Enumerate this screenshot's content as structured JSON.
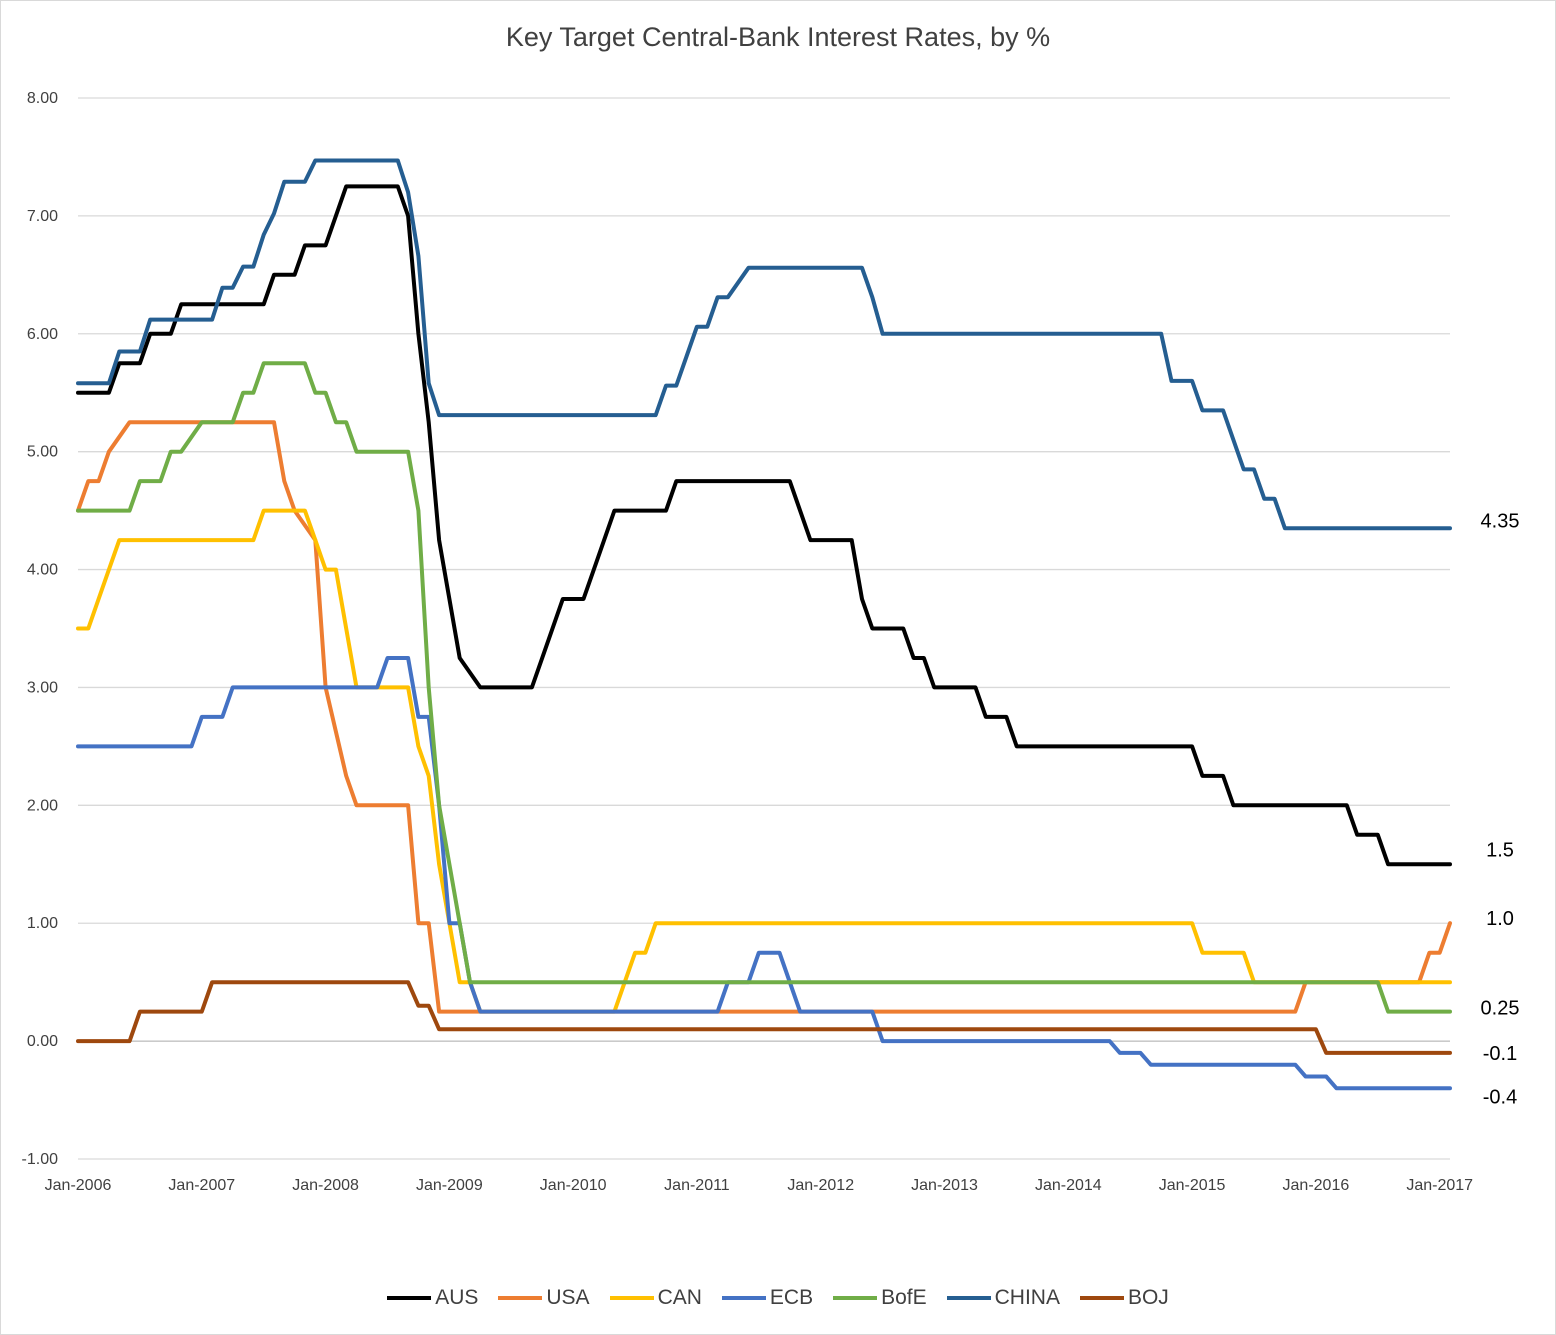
{
  "chart_data": {
    "type": "line",
    "title": "Key Target Central-Bank Interest Rates, by %",
    "xlabel": "",
    "ylabel": "",
    "ylim": [
      -1,
      8
    ],
    "xlim": [
      "2006-01",
      "2017-02"
    ],
    "grid": true,
    "legend_position": "bottom",
    "y_ticks": [
      "8.00",
      "7.00",
      "6.00",
      "5.00",
      "4.00",
      "3.00",
      "2.00",
      "1.00",
      "0.00",
      "-1.00"
    ],
    "x_ticks": [
      "Jan-2006",
      "Jan-2007",
      "Jan-2008",
      "Jan-2009",
      "Jan-2010",
      "Jan-2011",
      "Jan-2012",
      "Jan-2013",
      "Jan-2014",
      "Jan-2015",
      "Jan-2016",
      "Jan-2017"
    ],
    "end_labels": [
      {
        "text": "4.35",
        "value": 4.35
      },
      {
        "text": "1.5",
        "value": 1.5
      },
      {
        "text": "1.0",
        "value": 1.0
      },
      {
        "text": "0.25",
        "value": 0.25
      },
      {
        "text": "-0.1",
        "value": -0.1
      },
      {
        "text": "-0.4",
        "value": -0.4
      }
    ],
    "series": [
      {
        "name": "AUS",
        "color": "#000000",
        "points": [
          [
            "2006-01",
            5.5
          ],
          [
            "2006-04",
            5.5
          ],
          [
            "2006-05",
            5.75
          ],
          [
            "2006-07",
            5.75
          ],
          [
            "2006-08",
            6.0
          ],
          [
            "2006-10",
            6.0
          ],
          [
            "2006-11",
            6.25
          ],
          [
            "2007-07",
            6.25
          ],
          [
            "2007-08",
            6.5
          ],
          [
            "2007-10",
            6.5
          ],
          [
            "2007-11",
            6.75
          ],
          [
            "2008-01",
            6.75
          ],
          [
            "2008-02",
            7.0
          ],
          [
            "2008-03",
            7.25
          ],
          [
            "2008-08",
            7.25
          ],
          [
            "2008-09",
            7.0
          ],
          [
            "2008-10",
            6.0
          ],
          [
            "2008-11",
            5.25
          ],
          [
            "2008-12",
            4.25
          ],
          [
            "2009-02",
            3.25
          ],
          [
            "2009-04",
            3.0
          ],
          [
            "2009-09",
            3.0
          ],
          [
            "2009-10",
            3.25
          ],
          [
            "2009-11",
            3.5
          ],
          [
            "2009-12",
            3.75
          ],
          [
            "2010-02",
            3.75
          ],
          [
            "2010-03",
            4.0
          ],
          [
            "2010-05",
            4.5
          ],
          [
            "2010-10",
            4.5
          ],
          [
            "2010-11",
            4.75
          ],
          [
            "2011-10",
            4.75
          ],
          [
            "2011-11",
            4.5
          ],
          [
            "2011-12",
            4.25
          ],
          [
            "2012-04",
            4.25
          ],
          [
            "2012-05",
            3.75
          ],
          [
            "2012-06",
            3.5
          ],
          [
            "2012-09",
            3.5
          ],
          [
            "2012-10",
            3.25
          ],
          [
            "2012-11",
            3.25
          ],
          [
            "2012-12",
            3.0
          ],
          [
            "2013-04",
            3.0
          ],
          [
            "2013-05",
            2.75
          ],
          [
            "2013-07",
            2.75
          ],
          [
            "2013-08",
            2.5
          ],
          [
            "2015-01",
            2.5
          ],
          [
            "2015-02",
            2.25
          ],
          [
            "2015-04",
            2.25
          ],
          [
            "2015-05",
            2.0
          ],
          [
            "2016-04",
            2.0
          ],
          [
            "2016-05",
            1.75
          ],
          [
            "2016-07",
            1.75
          ],
          [
            "2016-08",
            1.5
          ],
          [
            "2017-02",
            1.5
          ]
        ]
      },
      {
        "name": "USA",
        "color": "#ED7D31",
        "points": [
          [
            "2006-01",
            4.5
          ],
          [
            "2006-02",
            4.75
          ],
          [
            "2006-03",
            4.75
          ],
          [
            "2006-04",
            5.0
          ],
          [
            "2006-06",
            5.25
          ],
          [
            "2007-08",
            5.25
          ],
          [
            "2007-09",
            4.75
          ],
          [
            "2007-10",
            4.5
          ],
          [
            "2007-12",
            4.25
          ],
          [
            "2008-01",
            3.0
          ],
          [
            "2008-03",
            2.25
          ],
          [
            "2008-04",
            2.0
          ],
          [
            "2008-09",
            2.0
          ],
          [
            "2008-10",
            1.0
          ],
          [
            "2008-11",
            1.0
          ],
          [
            "2008-12",
            0.25
          ],
          [
            "2015-11",
            0.25
          ],
          [
            "2015-12",
            0.5
          ],
          [
            "2016-11",
            0.5
          ],
          [
            "2016-12",
            0.75
          ],
          [
            "2017-01",
            0.75
          ],
          [
            "2017-02",
            1.0
          ]
        ]
      },
      {
        "name": "CAN",
        "color": "#FFC000",
        "points": [
          [
            "2006-01",
            3.5
          ],
          [
            "2006-02",
            3.5
          ],
          [
            "2006-03",
            3.75
          ],
          [
            "2006-04",
            4.0
          ],
          [
            "2006-05",
            4.25
          ],
          [
            "2007-06",
            4.25
          ],
          [
            "2007-07",
            4.5
          ],
          [
            "2007-11",
            4.5
          ],
          [
            "2007-12",
            4.25
          ],
          [
            "2008-01",
            4.0
          ],
          [
            "2008-02",
            4.0
          ],
          [
            "2008-03",
            3.5
          ],
          [
            "2008-04",
            3.0
          ],
          [
            "2008-09",
            3.0
          ],
          [
            "2008-10",
            2.5
          ],
          [
            "2008-11",
            2.25
          ],
          [
            "2008-12",
            1.5
          ],
          [
            "2009-01",
            1.0
          ],
          [
            "2009-02",
            0.5
          ],
          [
            "2009-03",
            0.5
          ],
          [
            "2009-04",
            0.25
          ],
          [
            "2010-05",
            0.25
          ],
          [
            "2010-06",
            0.5
          ],
          [
            "2010-07",
            0.75
          ],
          [
            "2010-08",
            0.75
          ],
          [
            "2010-09",
            1.0
          ],
          [
            "2015-01",
            1.0
          ],
          [
            "2015-02",
            0.75
          ],
          [
            "2015-06",
            0.75
          ],
          [
            "2015-07",
            0.5
          ],
          [
            "2017-02",
            0.5
          ]
        ]
      },
      {
        "name": "ECB",
        "color": "#4472C4",
        "points": [
          [
            "2006-01",
            2.5
          ],
          [
            "2006-12",
            2.5
          ],
          [
            "2007-01",
            2.75
          ],
          [
            "2007-03",
            2.75
          ],
          [
            "2007-04",
            3.0
          ],
          [
            "2008-06",
            3.0
          ],
          [
            "2008-07",
            3.25
          ],
          [
            "2008-09",
            3.25
          ],
          [
            "2008-10",
            2.75
          ],
          [
            "2008-11",
            2.75
          ],
          [
            "2008-12",
            2.0
          ],
          [
            "2009-01",
            1.0
          ],
          [
            "2009-02",
            1.0
          ],
          [
            "2009-03",
            0.5
          ],
          [
            "2009-04",
            0.25
          ],
          [
            "2011-03",
            0.25
          ],
          [
            "2011-04",
            0.5
          ],
          [
            "2011-06",
            0.5
          ],
          [
            "2011-07",
            0.75
          ],
          [
            "2011-09",
            0.75
          ],
          [
            "2011-10",
            0.5
          ],
          [
            "2011-11",
            0.25
          ],
          [
            "2012-06",
            0.25
          ],
          [
            "2012-07",
            0.0
          ],
          [
            "2014-05",
            0.0
          ],
          [
            "2014-06",
            -0.1
          ],
          [
            "2014-08",
            -0.1
          ],
          [
            "2014-09",
            -0.2
          ],
          [
            "2015-11",
            -0.2
          ],
          [
            "2015-12",
            -0.3
          ],
          [
            "2016-02",
            -0.3
          ],
          [
            "2016-03",
            -0.4
          ],
          [
            "2017-02",
            -0.4
          ]
        ]
      },
      {
        "name": "BofE",
        "color": "#70AD47",
        "points": [
          [
            "2006-01",
            4.5
          ],
          [
            "2006-06",
            4.5
          ],
          [
            "2006-07",
            4.75
          ],
          [
            "2006-09",
            4.75
          ],
          [
            "2006-10",
            5.0
          ],
          [
            "2006-11",
            5.0
          ],
          [
            "2007-01",
            5.25
          ],
          [
            "2007-04",
            5.25
          ],
          [
            "2007-05",
            5.5
          ],
          [
            "2007-06",
            5.5
          ],
          [
            "2007-07",
            5.75
          ],
          [
            "2007-11",
            5.75
          ],
          [
            "2007-12",
            5.5
          ],
          [
            "2008-01",
            5.5
          ],
          [
            "2008-02",
            5.25
          ],
          [
            "2008-03",
            5.25
          ],
          [
            "2008-04",
            5.0
          ],
          [
            "2008-09",
            5.0
          ],
          [
            "2008-10",
            4.5
          ],
          [
            "2008-11",
            3.0
          ],
          [
            "2008-12",
            2.0
          ],
          [
            "2009-01",
            1.5
          ],
          [
            "2009-02",
            1.0
          ],
          [
            "2009-03",
            0.5
          ],
          [
            "2016-07",
            0.5
          ],
          [
            "2016-08",
            0.25
          ],
          [
            "2017-02",
            0.25
          ]
        ]
      },
      {
        "name": "CHINA",
        "color": "#255E91",
        "points": [
          [
            "2006-01",
            5.58
          ],
          [
            "2006-04",
            5.58
          ],
          [
            "2006-05",
            5.85
          ],
          [
            "2006-07",
            5.85
          ],
          [
            "2006-08",
            6.12
          ],
          [
            "2007-02",
            6.12
          ],
          [
            "2007-03",
            6.39
          ],
          [
            "2007-04",
            6.39
          ],
          [
            "2007-05",
            6.57
          ],
          [
            "2007-06",
            6.57
          ],
          [
            "2007-07",
            6.84
          ],
          [
            "2007-08",
            7.02
          ],
          [
            "2007-09",
            7.29
          ],
          [
            "2007-11",
            7.29
          ],
          [
            "2007-12",
            7.47
          ],
          [
            "2008-08",
            7.47
          ],
          [
            "2008-09",
            7.2
          ],
          [
            "2008-10",
            6.66
          ],
          [
            "2008-11",
            5.58
          ],
          [
            "2008-12",
            5.31
          ],
          [
            "2010-09",
            5.31
          ],
          [
            "2010-10",
            5.56
          ],
          [
            "2010-11",
            5.56
          ],
          [
            "2010-12",
            5.81
          ],
          [
            "2011-01",
            6.06
          ],
          [
            "2011-02",
            6.06
          ],
          [
            "2011-03",
            6.31
          ],
          [
            "2011-04",
            6.31
          ],
          [
            "2011-06",
            6.56
          ],
          [
            "2012-05",
            6.56
          ],
          [
            "2012-06",
            6.31
          ],
          [
            "2012-07",
            6.0
          ],
          [
            "2014-10",
            6.0
          ],
          [
            "2014-11",
            5.6
          ],
          [
            "2015-01",
            5.6
          ],
          [
            "2015-02",
            5.35
          ],
          [
            "2015-04",
            5.35
          ],
          [
            "2015-05",
            5.1
          ],
          [
            "2015-06",
            4.85
          ],
          [
            "2015-07",
            4.85
          ],
          [
            "2015-08",
            4.6
          ],
          [
            "2015-09",
            4.6
          ],
          [
            "2015-10",
            4.35
          ],
          [
            "2017-02",
            4.35
          ]
        ]
      },
      {
        "name": "BOJ",
        "color": "#9E480E",
        "points": [
          [
            "2006-01",
            0.0
          ],
          [
            "2006-06",
            0.0
          ],
          [
            "2006-07",
            0.25
          ],
          [
            "2007-01",
            0.25
          ],
          [
            "2007-02",
            0.5
          ],
          [
            "2008-09",
            0.5
          ],
          [
            "2008-10",
            0.3
          ],
          [
            "2008-11",
            0.3
          ],
          [
            "2008-12",
            0.1
          ],
          [
            "2016-01",
            0.1
          ],
          [
            "2016-02",
            -0.1
          ],
          [
            "2017-02",
            -0.1
          ]
        ]
      }
    ]
  }
}
